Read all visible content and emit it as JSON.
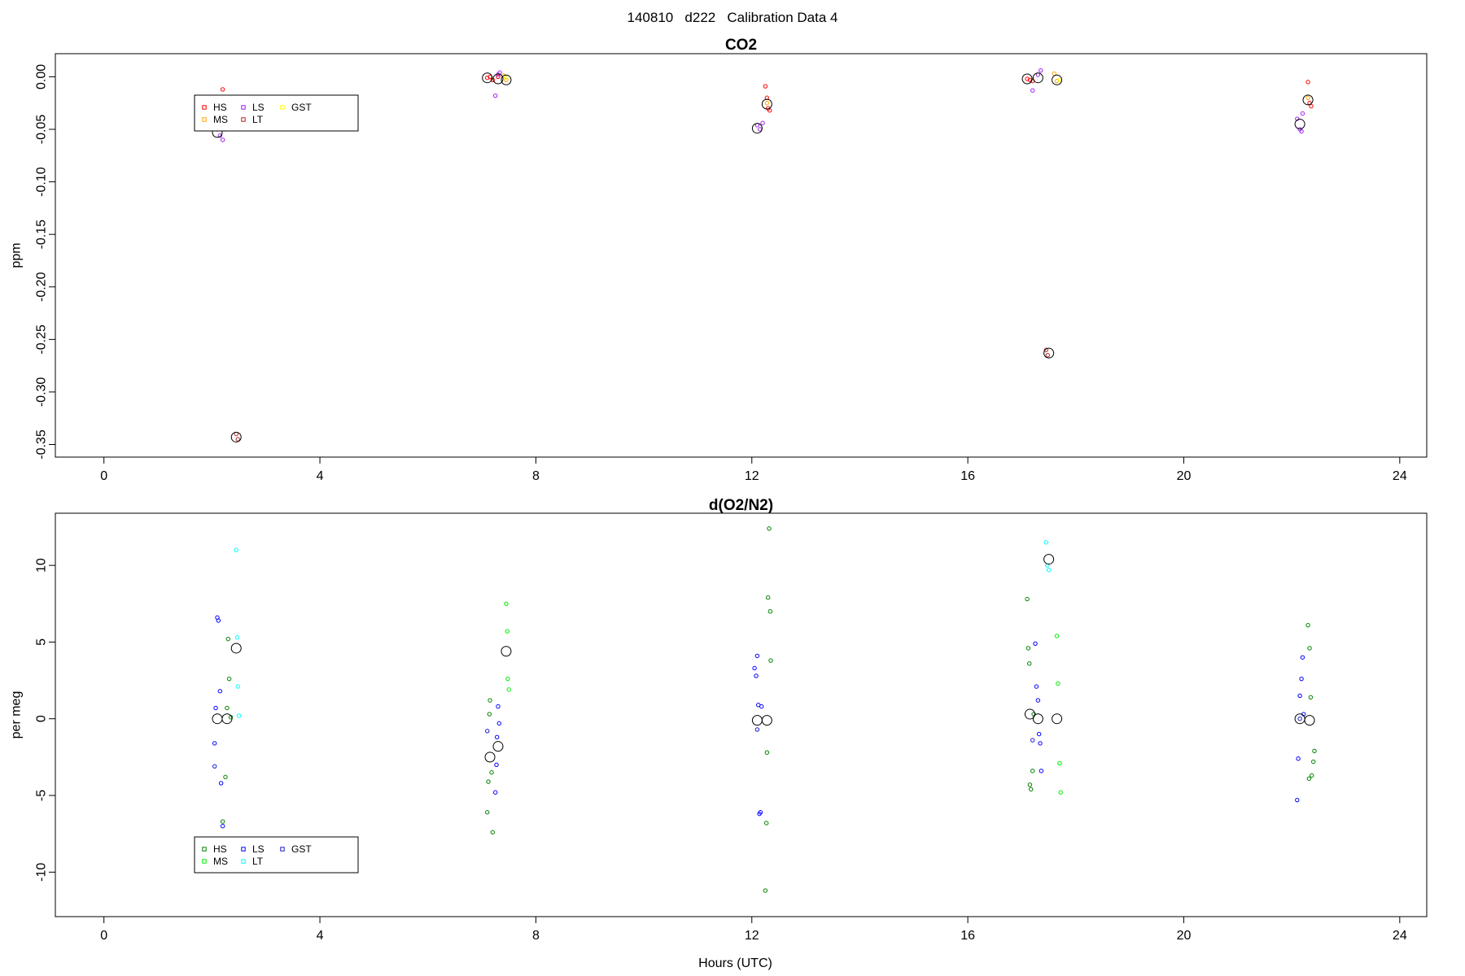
{
  "page_title": "140810   d222   Calibration Data 4",
  "chart_data": [
    {
      "type": "scatter",
      "title": "CO2",
      "xlabel": "",
      "ylabel": "ppm",
      "xlim": [
        -0.9,
        24.5
      ],
      "ylim": [
        -0.362,
        0.022
      ],
      "xticks": [
        0,
        4,
        8,
        12,
        16,
        20,
        24
      ],
      "xtick_labels": [
        "0",
        "4",
        "8",
        "12",
        "16",
        "20",
        "24"
      ],
      "yticks": [
        0.0,
        -0.05,
        -0.1,
        -0.15,
        -0.2,
        -0.25,
        -0.3,
        -0.35
      ],
      "ytick_labels": [
        "0.00",
        "-0.05",
        "-0.10",
        "-0.15",
        "-0.20",
        "-0.25",
        "-0.30",
        "-0.35"
      ],
      "grid": false,
      "legend": {
        "placement": "top-left",
        "entries": [
          {
            "label": "HS",
            "color": "#ff0000"
          },
          {
            "label": "MS",
            "color": "#ffa500"
          },
          {
            "label": "LS",
            "color": "#a020f0"
          },
          {
            "label": "LT",
            "color": "#b22222"
          },
          {
            "label": "GST",
            "color": "#ffff00"
          }
        ]
      },
      "series": [
        {
          "name": "HS",
          "color": "#ff0000",
          "points": [
            [
              2.2,
              -0.012
            ],
            [
              2.25,
              -0.05
            ],
            [
              7.1,
              -0.001
            ],
            [
              7.15,
              0.0
            ],
            [
              7.2,
              -0.003
            ],
            [
              7.3,
              0.0
            ],
            [
              12.25,
              -0.009
            ],
            [
              12.28,
              -0.02
            ],
            [
              12.3,
              -0.03
            ],
            [
              12.33,
              -0.032
            ],
            [
              17.1,
              -0.002
            ],
            [
              17.15,
              -0.003
            ],
            [
              17.2,
              -0.004
            ],
            [
              22.3,
              -0.005
            ],
            [
              22.33,
              -0.025
            ],
            [
              22.36,
              -0.028
            ]
          ]
        },
        {
          "name": "MS",
          "color": "#ffa500",
          "points": [
            [
              7.4,
              0.001
            ],
            [
              7.45,
              -0.003
            ],
            [
              12.28,
              -0.025
            ],
            [
              17.6,
              0.003
            ],
            [
              17.65,
              -0.004
            ],
            [
              22.3,
              -0.02
            ]
          ]
        },
        {
          "name": "LS",
          "color": "#a020f0",
          "points": [
            [
              2.1,
              -0.05
            ],
            [
              2.15,
              -0.056
            ],
            [
              2.2,
              -0.06
            ],
            [
              7.25,
              -0.018
            ],
            [
              7.3,
              0.002
            ],
            [
              7.33,
              0.004
            ],
            [
              12.1,
              -0.046
            ],
            [
              12.15,
              -0.05
            ],
            [
              12.2,
              -0.044
            ],
            [
              17.2,
              -0.013
            ],
            [
              17.3,
              0.002
            ],
            [
              17.35,
              0.006
            ],
            [
              22.1,
              -0.04
            ],
            [
              22.15,
              -0.05
            ],
            [
              22.2,
              -0.035
            ],
            [
              22.18,
              -0.052
            ]
          ]
        },
        {
          "name": "LT",
          "color": "#b22222",
          "points": [
            [
              2.45,
              -0.34
            ],
            [
              2.48,
              -0.345
            ],
            [
              17.45,
              -0.26
            ],
            [
              17.48,
              -0.265
            ]
          ]
        },
        {
          "name": "GST",
          "color": "#ffff00",
          "points": [
            [
              7.45,
              -0.001
            ],
            [
              17.7,
              -0.003
            ]
          ]
        },
        {
          "color": "#000000",
          "big": true,
          "points": [
            [
              2.1,
              -0.053
            ],
            [
              2.45,
              -0.343
            ],
            [
              7.1,
              -0.001
            ],
            [
              7.3,
              -0.002
            ],
            [
              7.45,
              -0.003
            ],
            [
              12.1,
              -0.049
            ],
            [
              12.28,
              -0.026
            ],
            [
              17.1,
              -0.002
            ],
            [
              17.3,
              -0.001
            ],
            [
              17.5,
              -0.263
            ],
            [
              17.65,
              -0.003
            ],
            [
              22.15,
              -0.045
            ],
            [
              22.3,
              -0.022
            ]
          ]
        }
      ]
    },
    {
      "type": "scatter",
      "title": "d(O2/N2)",
      "xlabel": "Hours (UTC)",
      "ylabel": "per meg",
      "xlim": [
        -0.9,
        24.5
      ],
      "ylim": [
        -12.9,
        13.4
      ],
      "xticks": [
        0,
        4,
        8,
        12,
        16,
        20,
        24
      ],
      "xtick_labels": [
        "0",
        "4",
        "8",
        "12",
        "16",
        "20",
        "24"
      ],
      "yticks": [
        10,
        5,
        0,
        -5,
        -10
      ],
      "ytick_labels": [
        "10",
        "5",
        "0",
        "-5",
        "-10"
      ],
      "grid": false,
      "legend": {
        "placement": "bottom-left",
        "entries": [
          {
            "label": "HS",
            "color": "#008000"
          },
          {
            "label": "MS",
            "color": "#00ee00"
          },
          {
            "label": "LS",
            "color": "#0000ff"
          },
          {
            "label": "LT",
            "color": "#00ffff"
          },
          {
            "label": "GST",
            "color": "#1a1ac8"
          }
        ]
      },
      "series": [
        {
          "name": "HS",
          "color": "#008000",
          "points": [
            [
              2.2,
              -6.7
            ],
            [
              2.25,
              -3.8
            ],
            [
              2.28,
              0.7
            ],
            [
              2.3,
              5.2
            ],
            [
              2.32,
              2.6
            ],
            [
              2.35,
              0.1
            ],
            [
              7.1,
              -6.1
            ],
            [
              7.12,
              -4.1
            ],
            [
              7.14,
              0.3
            ],
            [
              7.15,
              1.2
            ],
            [
              7.18,
              -3.5
            ],
            [
              7.2,
              -7.4
            ],
            [
              12.25,
              -11.2
            ],
            [
              12.27,
              -6.8
            ],
            [
              12.28,
              -2.2
            ],
            [
              12.3,
              7.9
            ],
            [
              12.32,
              12.4
            ],
            [
              12.34,
              7.0
            ],
            [
              12.35,
              3.8
            ],
            [
              17.1,
              7.8
            ],
            [
              17.12,
              4.6
            ],
            [
              17.14,
              3.6
            ],
            [
              17.15,
              -4.3
            ],
            [
              17.17,
              -4.6
            ],
            [
              17.2,
              -3.4
            ],
            [
              17.22,
              0.3
            ],
            [
              22.3,
              6.1
            ],
            [
              22.33,
              4.6
            ],
            [
              22.35,
              1.4
            ],
            [
              22.37,
              -3.7
            ],
            [
              22.4,
              -2.8
            ],
            [
              22.42,
              -2.1
            ],
            [
              22.32,
              -3.9
            ]
          ]
        },
        {
          "name": "MS",
          "color": "#00ee00",
          "points": [
            [
              7.45,
              7.5
            ],
            [
              7.47,
              5.7
            ],
            [
              7.48,
              2.6
            ],
            [
              7.5,
              1.9
            ],
            [
              17.65,
              5.4
            ],
            [
              17.67,
              2.3
            ],
            [
              17.7,
              -2.9
            ],
            [
              17.72,
              -4.8
            ]
          ]
        },
        {
          "name": "LS",
          "color": "#0000ff",
          "points": [
            [
              2.05,
              -1.6
            ],
            [
              2.07,
              0.7
            ],
            [
              2.1,
              6.6
            ],
            [
              2.12,
              6.4
            ],
            [
              2.15,
              1.8
            ],
            [
              2.17,
              -4.2
            ],
            [
              2.2,
              -7.0
            ],
            [
              7.25,
              -4.8
            ],
            [
              7.27,
              -3.0
            ],
            [
              7.28,
              -1.2
            ],
            [
              7.3,
              0.8
            ],
            [
              7.32,
              -0.3
            ],
            [
              12.05,
              3.3
            ],
            [
              12.08,
              2.8
            ],
            [
              12.1,
              4.1
            ],
            [
              12.12,
              0.9
            ],
            [
              12.14,
              -6.2
            ],
            [
              12.16,
              -6.1
            ],
            [
              12.18,
              0.8
            ],
            [
              17.25,
              4.9
            ],
            [
              17.27,
              2.1
            ],
            [
              17.3,
              1.2
            ],
            [
              17.32,
              -1.0
            ],
            [
              17.34,
              -1.6
            ],
            [
              17.36,
              -3.4
            ],
            [
              22.1,
              -5.3
            ],
            [
              22.12,
              -2.6
            ],
            [
              22.15,
              1.5
            ],
            [
              22.18,
              2.6
            ],
            [
              22.2,
              4.0
            ],
            [
              22.22,
              0.3
            ]
          ]
        },
        {
          "name": "LT",
          "color": "#00ffff",
          "points": [
            [
              2.45,
              11.0
            ],
            [
              2.47,
              5.3
            ],
            [
              2.48,
              2.1
            ],
            [
              2.5,
              0.2
            ],
            [
              17.45,
              11.5
            ],
            [
              17.47,
              10.0
            ],
            [
              17.5,
              9.7
            ]
          ]
        },
        {
          "name": "GST",
          "color": "#1a1ac8",
          "points": [
            [
              2.05,
              -3.1
            ],
            [
              7.1,
              -0.8
            ],
            [
              12.1,
              -0.7
            ],
            [
              17.2,
              -1.4
            ],
            [
              22.15,
              0.0
            ]
          ]
        },
        {
          "color": "#000000",
          "big": true,
          "points": [
            [
              2.1,
              0.0
            ],
            [
              2.28,
              0.0
            ],
            [
              2.45,
              4.6
            ],
            [
              7.15,
              -2.5
            ],
            [
              7.3,
              -1.8
            ],
            [
              7.45,
              4.4
            ],
            [
              12.1,
              -0.1
            ],
            [
              12.28,
              -0.1
            ],
            [
              17.15,
              0.3
            ],
            [
              17.3,
              0.0
            ],
            [
              17.5,
              10.4
            ],
            [
              17.65,
              0.0
            ],
            [
              22.15,
              0.0
            ],
            [
              22.33,
              -0.1
            ]
          ]
        }
      ]
    }
  ]
}
